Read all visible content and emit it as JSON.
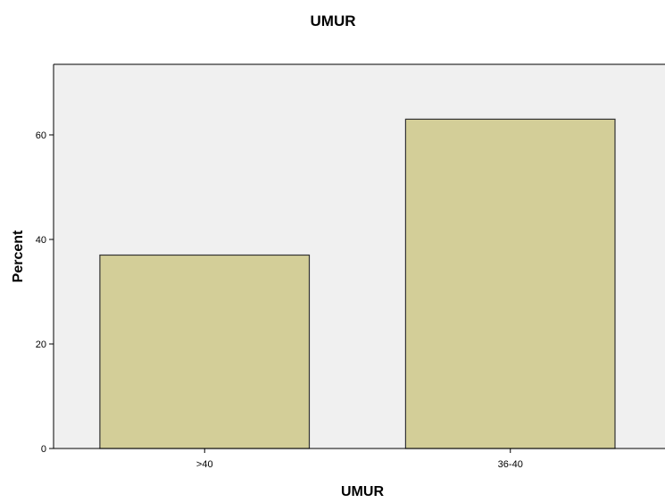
{
  "chart_data": {
    "type": "bar",
    "title": "UMUR",
    "xlabel": "UMUR",
    "ylabel": "Percent",
    "categories": [
      ">40",
      "36-40"
    ],
    "values": [
      37,
      63
    ],
    "ylim": [
      0,
      73.5
    ],
    "yticks": [
      0,
      20,
      40,
      60
    ],
    "grid": false,
    "legend": "none",
    "colors": {
      "bar_fill": "#d3ce98",
      "bar_stroke": "#333333",
      "plot_background": "#f0f0f0",
      "axis": "#000000"
    }
  }
}
